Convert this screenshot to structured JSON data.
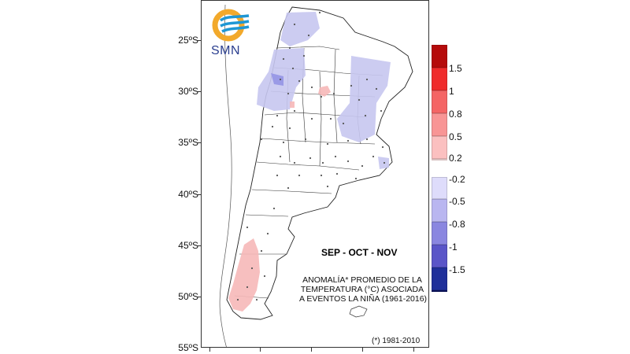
{
  "logo": {
    "text": "SMN",
    "icon": "smn-logo-icon",
    "colors": {
      "sun": "#f2a92b",
      "waves": "#1f97d4"
    }
  },
  "map": {
    "season": "SEP - OCT - NOV",
    "caption": [
      "ANOMALÍA* PROMEDIO DE LA",
      "TEMPERATURA (°C) ASOCIADA",
      "A EVENTOS LA NIÑA (1961-2016)"
    ],
    "footnote": "(*) 1981-2010",
    "lat_labels": [
      "25ºS",
      "30ºS",
      "35ºS",
      "40ºS",
      "45ºS",
      "50ºS",
      "55ºS"
    ],
    "colors": {
      "warm_anomaly": "#f6b8b8",
      "cool_anomaly": "#c7c7f0",
      "cool_anomaly_strong": "#9a9ae6",
      "station": "#555555",
      "border": "#222222"
    }
  },
  "legend": {
    "warm": [
      {
        "label": "1.5",
        "color": "#b50b0b"
      },
      {
        "label": "1",
        "color": "#ef2b2b"
      },
      {
        "label": "0.8",
        "color": "#f46565"
      },
      {
        "label": "0.5",
        "color": "#f89595"
      },
      {
        "label": "0.2",
        "color": "#fbc0c0"
      },
      {
        "label": "",
        "color": "#fce0e0"
      }
    ],
    "cool": [
      {
        "label": "-0.2",
        "color": "#dedcfb"
      },
      {
        "label": "-0.5",
        "color": "#b9b6f0"
      },
      {
        "label": "-0.8",
        "color": "#8a86e0"
      },
      {
        "label": "-1",
        "color": "#5a55c8"
      },
      {
        "label": "-1.5",
        "color": "#1f2f9a"
      },
      {
        "label": "",
        "color": "#0c1462"
      }
    ]
  }
}
